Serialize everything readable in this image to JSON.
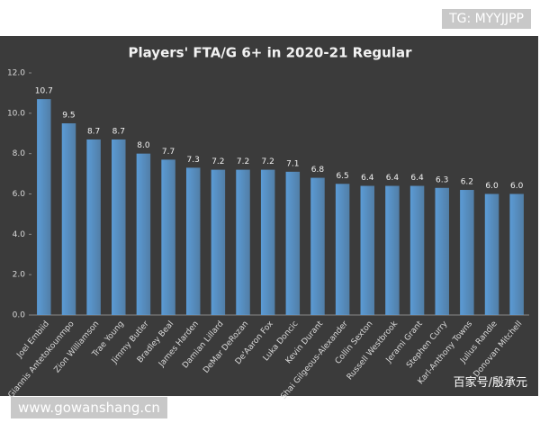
{
  "chart_data": {
    "type": "bar",
    "title": "Players' FTA/G 6+ in 2020-21 Regular",
    "categories": [
      "Joel Embiid",
      "Giannis Antetokounmpo",
      "Zion Williamson",
      "Trae Young",
      "Jimmy Butler",
      "Bradley Beal",
      "James Harden",
      "Damian Lillard",
      "DeMar DeRozan",
      "De'Aaron Fox",
      "Luka Doncic",
      "Kevin Durant",
      "Shai Gilgeous-Alexander",
      "Collin Sexton",
      "Russell Westbrook",
      "Jerami Grant",
      "Stephen Curry",
      "Karl-Anthony Towns",
      "Julius Randle",
      "Donovan Mitchell"
    ],
    "values": [
      10.7,
      9.5,
      8.7,
      8.7,
      8.0,
      7.7,
      7.3,
      7.2,
      7.2,
      7.2,
      7.1,
      6.8,
      6.5,
      6.4,
      6.4,
      6.4,
      6.3,
      6.2,
      6.0,
      6.0
    ],
    "value_labels": [
      "10.7",
      "9.5",
      "8.7",
      "8.7",
      "8.0",
      "7.7",
      "7.3",
      "7.2",
      "7.2",
      "7.2",
      "7.1",
      "6.8",
      "6.5",
      "6.4",
      "6.4",
      "6.4",
      "6.3",
      "6.2",
      "6.0",
      "6.0"
    ],
    "color": "#5b9bd5",
    "ylim": [
      0,
      12
    ],
    "yticks": [
      {
        "value": 0,
        "label": "0.0"
      },
      {
        "value": 2,
        "label": "2.0"
      },
      {
        "value": 4,
        "label": "4.0"
      },
      {
        "value": 6,
        "label": "6.0"
      },
      {
        "value": 8,
        "label": "8.0"
      },
      {
        "value": 10,
        "label": "10.0"
      },
      {
        "value": 12,
        "label": "12.0"
      }
    ],
    "grid": false
  },
  "watermarks": {
    "top_right": "TG: MYYJJPP",
    "bottom_left": "www.gowanshang.cn",
    "bottom_right": "百家号/殷承元"
  }
}
